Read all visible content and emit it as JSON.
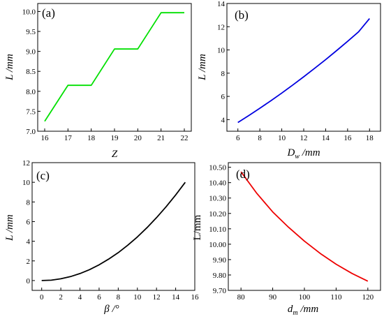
{
  "chart_data": [
    {
      "id": "a",
      "panel_label": "(a)",
      "type": "line",
      "color": "#00e000",
      "xlabel": "Z",
      "ylabel": "L /mm",
      "xlim": [
        15.7,
        22.3
      ],
      "ylim": [
        7.0,
        10.2
      ],
      "xticks": [
        16,
        17,
        18,
        19,
        20,
        21,
        22
      ],
      "yticks": [
        7.0,
        7.5,
        8.0,
        8.5,
        9.0,
        9.5,
        10.0
      ],
      "ytick_decimals": 1,
      "series": [
        {
          "x": [
            16,
            17,
            18,
            19,
            20,
            21,
            22
          ],
          "y": [
            7.25,
            8.15,
            8.15,
            9.06,
            9.06,
            9.97,
            9.97
          ]
        }
      ]
    },
    {
      "id": "b",
      "panel_label": "(b)",
      "type": "line",
      "color": "#0000e0",
      "xlabel": "Dw /mm",
      "ylabel": "L /mm",
      "xlim": [
        5,
        19
      ],
      "ylim": [
        3,
        14
      ],
      "xticks": [
        6,
        8,
        10,
        12,
        14,
        16,
        18
      ],
      "yticks": [
        4,
        6,
        8,
        10,
        12,
        14
      ],
      "ytick_decimals": 0,
      "series": [
        {
          "x": [
            6,
            7,
            8,
            9,
            10,
            11,
            12,
            13,
            14,
            15,
            16,
            17,
            18
          ],
          "y": [
            3.75,
            4.35,
            4.98,
            5.62,
            6.29,
            6.98,
            7.69,
            8.42,
            9.17,
            9.94,
            10.74,
            11.56,
            12.7
          ]
        }
      ]
    },
    {
      "id": "c",
      "panel_label": "(c)",
      "type": "line",
      "color": "#000000",
      "xlabel": "β /°",
      "ylabel": "L /mm",
      "xlim": [
        -1,
        16
      ],
      "ylim": [
        -1,
        12
      ],
      "xticks": [
        0,
        2,
        4,
        6,
        8,
        10,
        12,
        14,
        16
      ],
      "yticks": [
        0,
        2,
        4,
        6,
        8,
        10,
        12
      ],
      "ytick_decimals": 0,
      "series": [
        {
          "x": [
            0,
            1,
            2,
            3,
            4,
            5,
            6,
            7,
            8,
            9,
            10,
            11,
            12,
            13,
            14,
            15
          ],
          "y": [
            0,
            0.04,
            0.18,
            0.4,
            0.71,
            1.11,
            1.6,
            2.18,
            2.84,
            3.6,
            4.44,
            5.38,
            6.4,
            7.51,
            8.71,
            10.0
          ]
        }
      ]
    },
    {
      "id": "d",
      "panel_label": "(d)",
      "type": "line",
      "color": "#ee0000",
      "xlabel": "dm /mm",
      "ylabel": "L/mm",
      "xlim": [
        76,
        124
      ],
      "ylim": [
        9.7,
        10.53
      ],
      "xticks": [
        80,
        90,
        100,
        110,
        120
      ],
      "yticks": [
        9.7,
        9.8,
        9.9,
        10.0,
        10.1,
        10.2,
        10.3,
        10.4,
        10.5
      ],
      "ytick_decimals": 2,
      "series": [
        {
          "x": [
            80,
            85,
            90,
            95,
            100,
            105,
            110,
            115,
            120
          ],
          "y": [
            10.47,
            10.33,
            10.21,
            10.11,
            10.02,
            9.94,
            9.87,
            9.81,
            9.76
          ]
        }
      ]
    }
  ]
}
